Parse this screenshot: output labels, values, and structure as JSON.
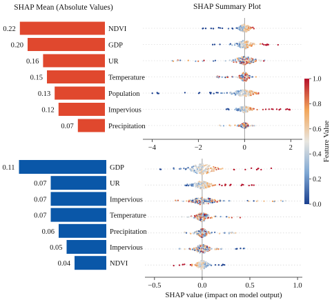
{
  "header": {
    "left_title": "SHAP Mean (Absolute Values)",
    "right_title": "SHAP Summary Plot"
  },
  "colorbar": {
    "label": "Feature Value",
    "ticks": [
      "1.0",
      "0.8",
      "0.6",
      "0.4",
      "0.2",
      "0.0"
    ],
    "colors": [
      "#1a3f8f",
      "#7fa8d4",
      "#e8e6e0",
      "#f3a65a",
      "#b5112b"
    ]
  },
  "chart_data": [
    {
      "type": "bar",
      "orientation": "horizontal",
      "title": "SHAP Mean (Absolute Values)",
      "color": "#e0482e",
      "categories": [
        "NDVI",
        "GDP",
        "UR",
        "Temperature",
        "Population",
        "Impervious",
        "Precipitation"
      ],
      "values": [
        0.22,
        0.2,
        0.16,
        0.15,
        0.13,
        0.12,
        0.07
      ],
      "labels": [
        "0.22",
        "0.20",
        "0.16",
        "0.15",
        "0.13",
        "0.12",
        "0.07"
      ]
    },
    {
      "type": "scatter",
      "subtype": "beeswarm",
      "title": "SHAP Summary Plot",
      "categories": [
        "NDVI",
        "GDP",
        "UR",
        "Temperature",
        "Population",
        "Impervious",
        "Precipitation"
      ],
      "xlim": [
        -4.4,
        2.5
      ],
      "xticks": [
        -4,
        -2,
        0,
        2
      ],
      "xtick_labels": [
        "−4",
        "−2",
        "0",
        "2"
      ],
      "series": [
        {
          "range": [
            -2.0,
            0.55
          ],
          "low_side": "left",
          "spread": 0.5
        },
        {
          "range": [
            -1.4,
            1.6
          ],
          "low_side": "left",
          "spread": 0.55
        },
        {
          "range": [
            -3.3,
            1.1
          ],
          "low_side": "mixed",
          "spread": 0.5
        },
        {
          "range": [
            -1.2,
            0.6
          ],
          "low_side": "mixed",
          "spread": 0.6
        },
        {
          "range": [
            -4.0,
            0.6
          ],
          "low_side": "left",
          "spread": 0.45
        },
        {
          "range": [
            -0.9,
            2.1
          ],
          "low_side": "left",
          "spread": 0.4
        },
        {
          "range": [
            -1.1,
            0.5
          ],
          "low_side": "mixed",
          "spread": 0.35
        }
      ]
    },
    {
      "type": "bar",
      "orientation": "horizontal",
      "color": "#0a57a8",
      "categories": [
        "GDP",
        "UR",
        "Impervious",
        "Temperature",
        "Precipitation",
        "Impervious",
        "NDVI"
      ],
      "values": [
        0.11,
        0.07,
        0.07,
        0.07,
        0.06,
        0.05,
        0.04
      ],
      "labels": [
        "0.11",
        "0.07",
        "0.07",
        "0.07",
        "0.06",
        "0.05",
        "0.04"
      ]
    },
    {
      "type": "scatter",
      "subtype": "beeswarm",
      "categories": [
        "GDP",
        "UR",
        "Impervious",
        "Temperature",
        "Precipitation",
        "Impervious",
        "NDVI"
      ],
      "xlim": [
        -0.6,
        1.05
      ],
      "xticks": [
        -0.5,
        0.0,
        0.5,
        1.0
      ],
      "xtick_labels": [
        "−0.5",
        "0.0",
        "0.5",
        "1.0"
      ],
      "xlabel": "SHAP value (impact on model output)",
      "series": [
        {
          "range": [
            -0.5,
            0.75
          ],
          "low_side": "left",
          "spread": 0.6
        },
        {
          "range": [
            -0.2,
            0.65
          ],
          "low_side": "left",
          "spread": 0.45
        },
        {
          "range": [
            -0.3,
            0.95
          ],
          "low_side": "mixed",
          "spread": 0.4
        },
        {
          "range": [
            -0.25,
            0.4
          ],
          "low_side": "mixed",
          "spread": 0.5
        },
        {
          "range": [
            -0.2,
            0.35
          ],
          "low_side": "mixed",
          "spread": 0.5
        },
        {
          "range": [
            -0.25,
            0.45
          ],
          "low_side": "mixed",
          "spread": 0.5
        },
        {
          "range": [
            -0.3,
            0.3
          ],
          "low_side": "right",
          "spread": 0.5
        }
      ]
    }
  ]
}
